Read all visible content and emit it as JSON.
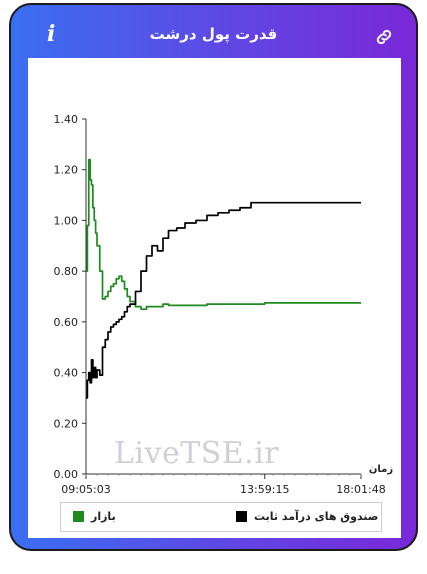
{
  "header": {
    "title": "قدرت پول درشت",
    "info_icon": "i",
    "link_icon": "link-icon"
  },
  "watermark": "LiveTSE.ir",
  "colors": {
    "market": "#1f8a1f",
    "fixed_income": "#000000",
    "gradient_left": "#3a6ff2",
    "gradient_right": "#7a28d8"
  },
  "chart_data": {
    "type": "line",
    "title": "",
    "xlabel": "زمان",
    "ylabel": "",
    "ylim": [
      0,
      1.4
    ],
    "y_ticks": [
      "1.40",
      "1.20",
      "1.00",
      "0.80",
      "0.60",
      "0.40",
      "0.20",
      "0.00"
    ],
    "x_ticks": [
      "09:05:03",
      "13:59:15",
      "18:01:48"
    ],
    "grid": false,
    "legend_position": "bottom",
    "x": [
      0,
      0.5,
      1,
      1.5,
      2,
      2.5,
      3,
      3.5,
      4,
      5,
      6,
      7,
      8,
      9,
      10,
      11,
      12,
      13,
      14,
      15,
      16,
      18,
      20,
      22,
      24,
      26,
      28,
      30,
      33,
      36,
      40,
      44,
      48,
      52,
      56,
      60,
      65,
      70,
      75,
      80,
      90,
      100
    ],
    "series": [
      {
        "name": "بازار",
        "color": "#1f8a1f",
        "values": [
          0.8,
          0.98,
          1.24,
          1.16,
          1.14,
          1.05,
          1.0,
          0.95,
          0.9,
          0.8,
          0.69,
          0.7,
          0.72,
          0.74,
          0.75,
          0.77,
          0.78,
          0.76,
          0.73,
          0.7,
          0.68,
          0.66,
          0.65,
          0.66,
          0.66,
          0.66,
          0.67,
          0.665,
          0.665,
          0.665,
          0.665,
          0.67,
          0.67,
          0.67,
          0.67,
          0.67,
          0.675,
          0.675,
          0.675,
          0.675,
          0.675,
          0.675
        ]
      },
      {
        "name": "صندوق های درآمد ثابت",
        "color": "#000000",
        "values": [
          0.3,
          0.37,
          0.4,
          0.36,
          0.45,
          0.38,
          0.42,
          0.38,
          0.41,
          0.39,
          0.5,
          0.53,
          0.56,
          0.58,
          0.59,
          0.6,
          0.61,
          0.62,
          0.64,
          0.66,
          0.67,
          0.72,
          0.8,
          0.86,
          0.9,
          0.88,
          0.93,
          0.96,
          0.97,
          0.99,
          1.0,
          1.02,
          1.03,
          1.04,
          1.05,
          1.07,
          1.07,
          1.07,
          1.07,
          1.07,
          1.07,
          1.07
        ]
      }
    ]
  },
  "legend": [
    {
      "label": "بازار",
      "color": "#1f8a1f"
    },
    {
      "label": "صندوق های درآمد ثابت",
      "color": "#000000"
    }
  ]
}
